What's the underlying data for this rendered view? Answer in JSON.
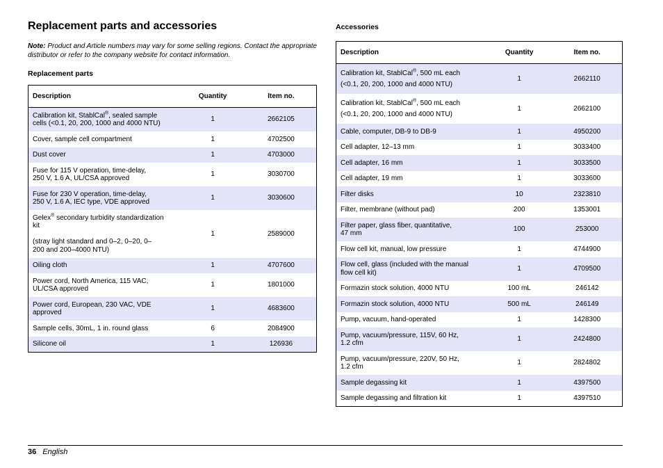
{
  "page": {
    "title": "Replacement parts and accessories",
    "note_label": "Note:",
    "note_text": "Product and Article numbers may vary for some selling regions. Contact the appropriate distributor or refer to the company website for contact information.",
    "footer": {
      "page_number": "36",
      "language": "English"
    }
  },
  "replacement_parts": {
    "heading": "Replacement parts",
    "columns": [
      "Description",
      "Quantity",
      "Item no."
    ],
    "rows": [
      {
        "description": "Calibration kit, StablCal®, sealed sample\ncells (<0.1, 20, 200, 1000 and 4000 NTU)",
        "quantity": "1",
        "item_no": "2662105"
      },
      {
        "description": "Cover, sample cell compartment",
        "quantity": "1",
        "item_no": "4702500"
      },
      {
        "description": "Dust cover",
        "quantity": "1",
        "item_no": "4703000"
      },
      {
        "description": "Fuse for 115 V operation, time-delay,\n250 V, 1.6 A, UL/CSA approved",
        "quantity": "1",
        "item_no": "3030700"
      },
      {
        "description": "Fuse for 230 V operation, time-delay,\n250 V, 1.6 A, IEC type, VDE approved",
        "quantity": "1",
        "item_no": "3030600"
      },
      {
        "description": "Gelex® secondary turbidity standardization\nkit\n\n(stray light standard and 0–2, 0–20, 0–\n200 and 200–4000 NTU)",
        "quantity": "1",
        "item_no": "2589000"
      },
      {
        "description": "Oiling cloth",
        "quantity": "1",
        "item_no": "4707600"
      },
      {
        "description": "Power cord, North America, 115 VAC,\nUL/CSA approved",
        "quantity": "1",
        "item_no": "1801000"
      },
      {
        "description": "Power cord, European, 230 VAC, VDE\napproved",
        "quantity": "1",
        "item_no": "4683600"
      },
      {
        "description": "Sample cells, 30mL, 1 in. round glass",
        "quantity": "6",
        "item_no": "2084900"
      },
      {
        "description": "Silicone oil",
        "quantity": "1",
        "item_no": "126936"
      }
    ]
  },
  "accessories": {
    "heading": "Accessories",
    "columns": [
      "Description",
      "Quantity",
      "Item no."
    ],
    "rows": [
      {
        "description": "Calibration kit, StablCal®, 500 mL each\n(<0.1, 20, 200, 1000 and 4000 NTU)",
        "quantity": "1",
        "item_no": "2662110"
      },
      {
        "description": "Calibration kit, StablCal®, 500 mL each\n(<0.1, 20, 200, 1000 and 4000 NTU)",
        "quantity": "1",
        "item_no": "2662100"
      },
      {
        "description": "Cable, computer, DB-9 to DB-9",
        "quantity": "1",
        "item_no": "4950200"
      },
      {
        "description": "Cell adapter, 12–13 mm",
        "quantity": "1",
        "item_no": "3033400"
      },
      {
        "description": "Cell adapter, 16 mm",
        "quantity": "1",
        "item_no": "3033500"
      },
      {
        "description": "Cell adapter, 19 mm",
        "quantity": "1",
        "item_no": "3033600"
      },
      {
        "description": "Filter disks",
        "quantity": "10",
        "item_no": "2323810"
      },
      {
        "description": "Filter, membrane (without pad)",
        "quantity": "200",
        "item_no": "1353001"
      },
      {
        "description": "Filter paper, glass fiber, quantitative,\n47 mm",
        "quantity": "100",
        "item_no": "253000"
      },
      {
        "description": "Flow cell kit, manual, low pressure",
        "quantity": "1",
        "item_no": "4744900"
      },
      {
        "description": "Flow cell, glass (included with the manual\nflow cell kit)",
        "quantity": "1",
        "item_no": "4709500"
      },
      {
        "description": "Formazin stock solution, 4000 NTU",
        "quantity": "100 mL",
        "item_no": "246142"
      },
      {
        "description": "Formazin stock solution, 4000 NTU",
        "quantity": "500 mL",
        "item_no": "246149"
      },
      {
        "description": "Pump, vacuum, hand-operated",
        "quantity": "1",
        "item_no": "1428300"
      },
      {
        "description": "Pump, vacuum/pressure, 115V, 60 Hz,\n1.2 cfm",
        "quantity": "1",
        "item_no": "2424800"
      },
      {
        "description": "Pump, vacuum/pressure, 220V, 50 Hz,\n1.2 cfm",
        "quantity": "1",
        "item_no": "2824802"
      },
      {
        "description": "Sample degassing kit",
        "quantity": "1",
        "item_no": "4397500"
      },
      {
        "description": "Sample degassing and filtration kit",
        "quantity": "1",
        "item_no": "4397510"
      }
    ]
  }
}
